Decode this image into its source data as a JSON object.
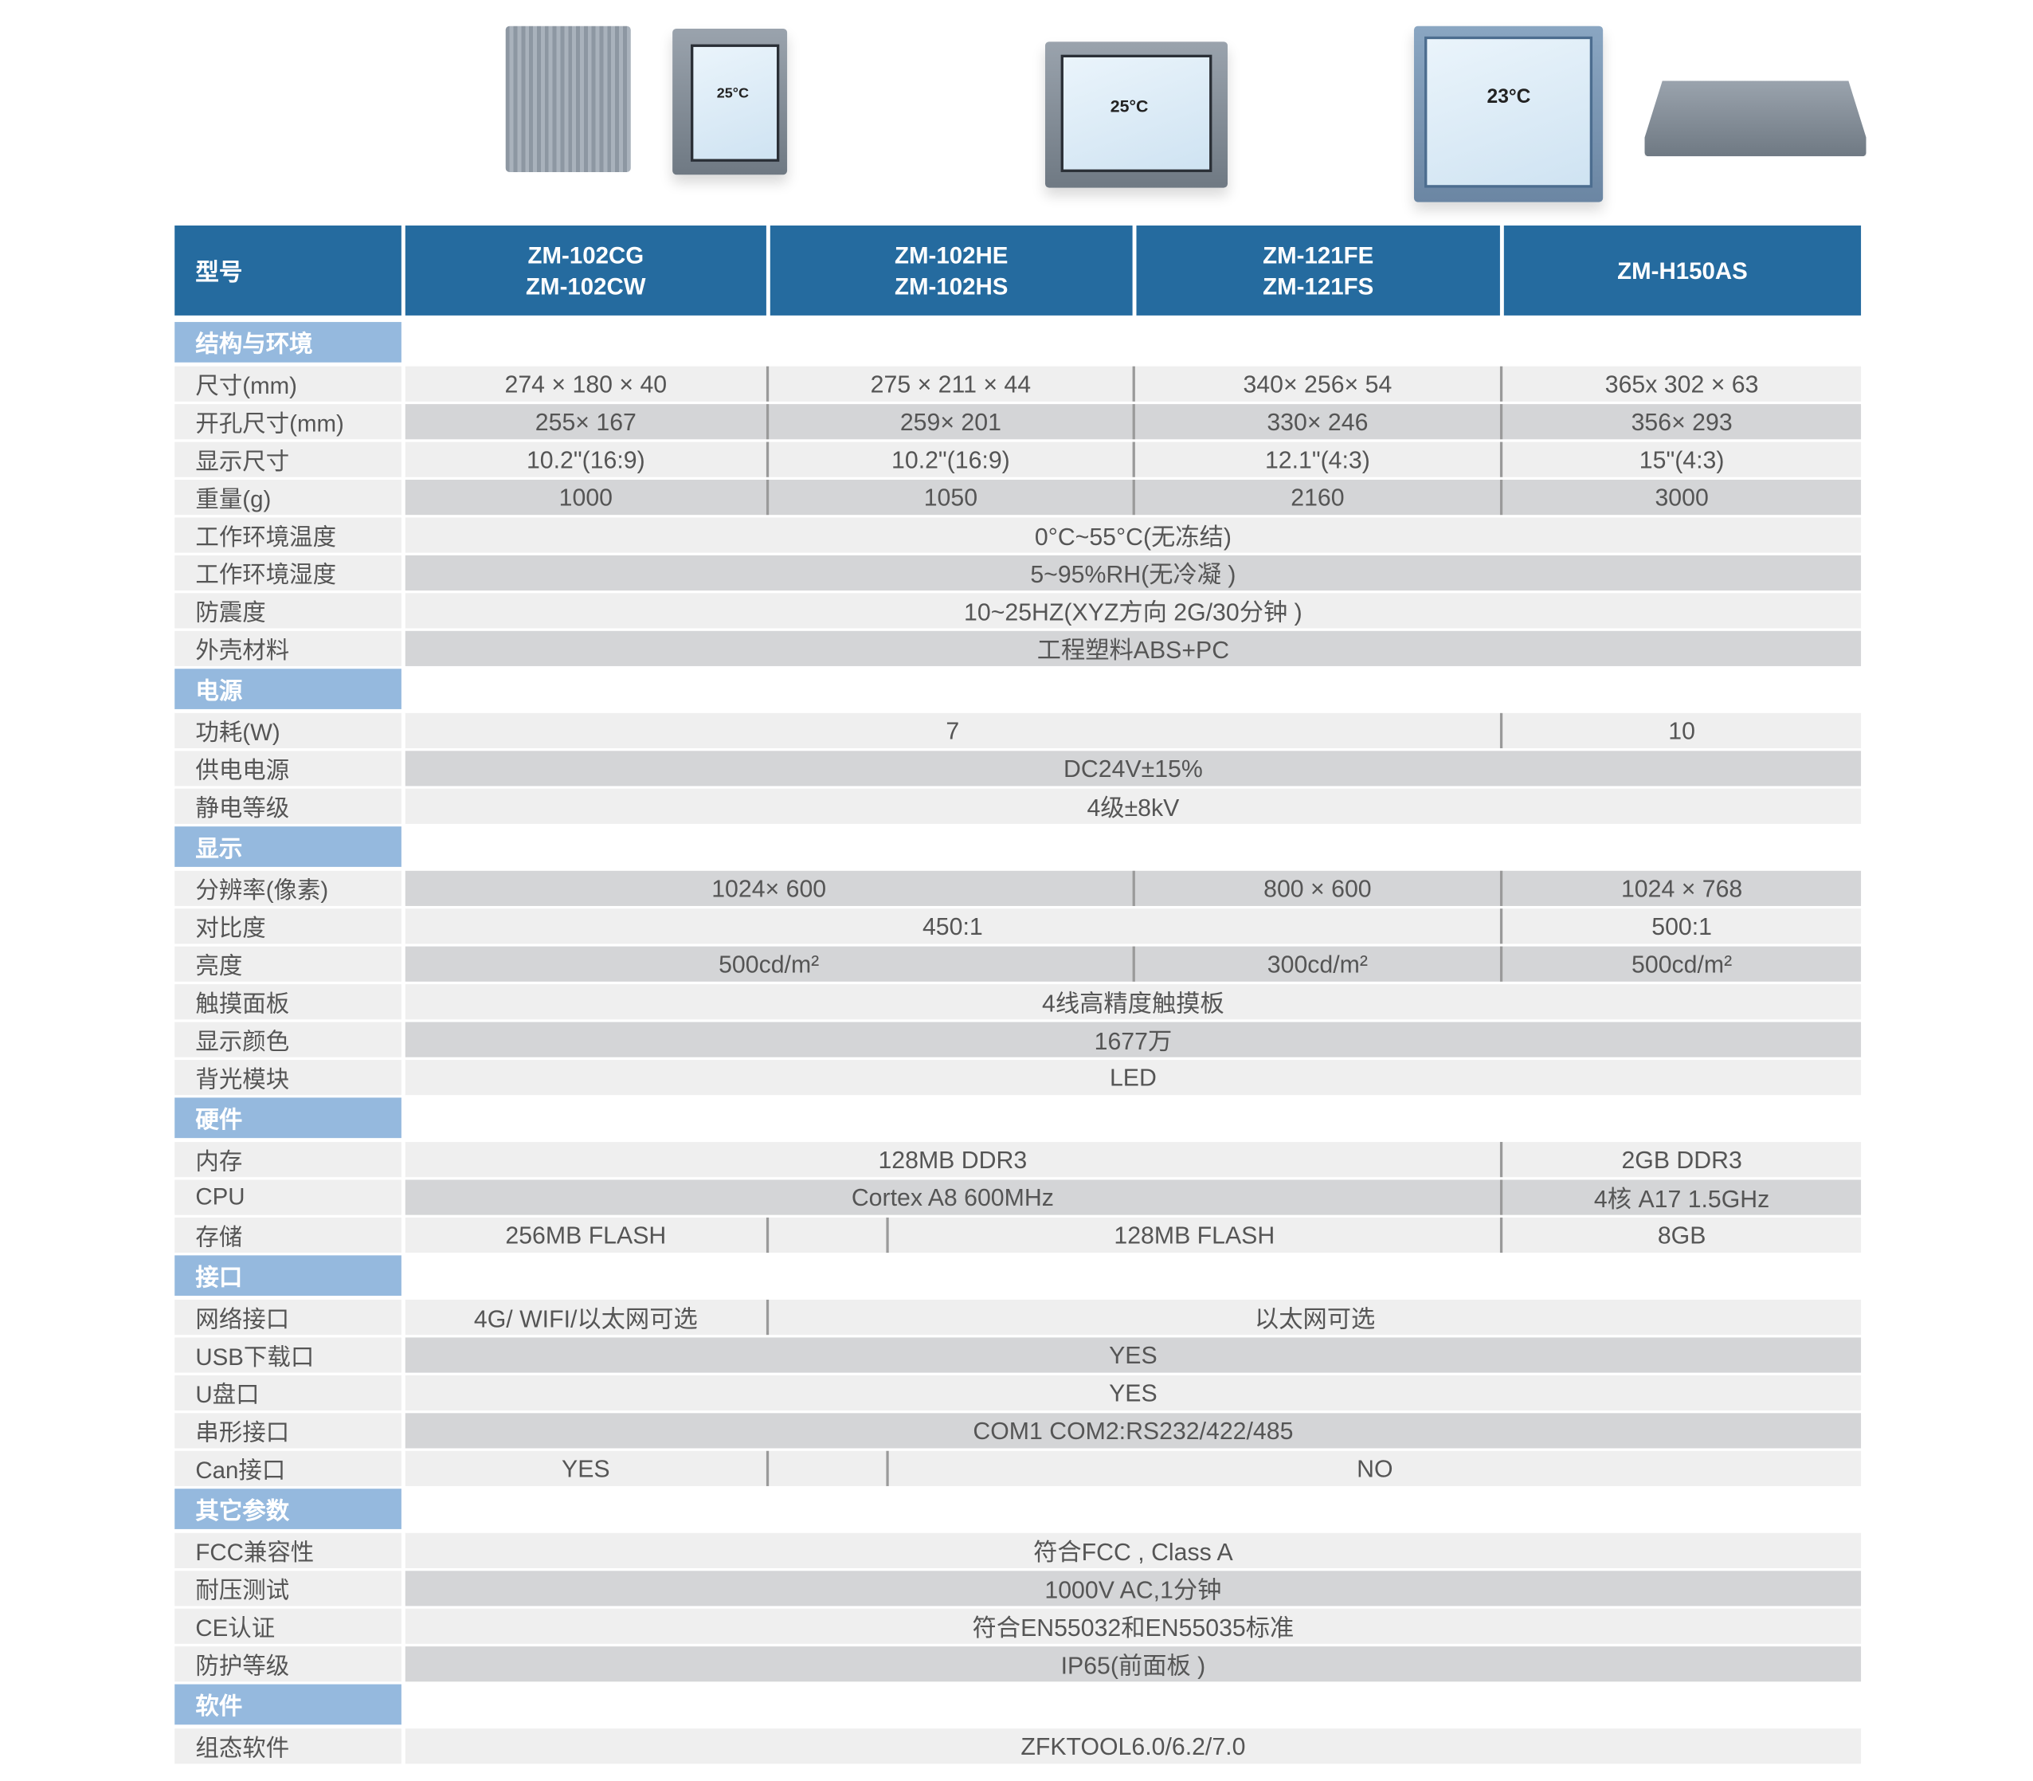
{
  "header": {
    "label": "型号",
    "models": [
      "ZM-102CG\nZM-102CW",
      "ZM-102HE\nZM-102HS",
      "ZM-121FE\nZM-121FS",
      "ZM-H150AS"
    ]
  },
  "colors": {
    "header": "#256b9f",
    "section": "#95b9de",
    "light": "#efefef",
    "dark": "#d4d5d7"
  },
  "products": [
    {
      "screen_text": "25°C"
    },
    {
      "screen_text": "25°C"
    },
    {
      "screen_text": "23°C"
    },
    {
      "screen_text": ""
    }
  ],
  "sections": [
    {
      "title": "结构与环境",
      "rows": [
        {
          "label": "尺寸(mm)",
          "band": "light",
          "cells": [
            {
              "text": "274 × 180 × 40",
              "span": 1
            },
            {
              "text": "275 × 211 × 44",
              "span": 2
            },
            {
              "text": "340× 256× 54",
              "span": 1
            },
            {
              "text": "365x 302 × 63",
              "span": 1
            }
          ]
        },
        {
          "label": "开孔尺寸(mm)",
          "band": "dark",
          "cells": [
            {
              "text": "255× 167",
              "span": 1
            },
            {
              "text": "259× 201",
              "span": 2
            },
            {
              "text": "330× 246",
              "span": 1
            },
            {
              "text": "356× 293",
              "span": 1
            }
          ]
        },
        {
          "label": "显示尺寸",
          "band": "light",
          "cells": [
            {
              "text": "10.2\"(16:9)",
              "span": 1
            },
            {
              "text": "10.2\"(16:9)",
              "span": 2
            },
            {
              "text": "12.1\"(4:3)",
              "span": 1
            },
            {
              "text": "15\"(4:3)",
              "span": 1
            }
          ]
        },
        {
          "label": "重量(g)",
          "band": "dark",
          "cells": [
            {
              "text": "1000",
              "span": 1
            },
            {
              "text": "1050",
              "span": 2
            },
            {
              "text": "2160",
              "span": 1
            },
            {
              "text": "3000",
              "span": 1
            }
          ]
        },
        {
          "label": "工作环境温度",
          "band": "light",
          "cells": [
            {
              "text": "0°C~55°C(无冻结)",
              "span": 5
            }
          ]
        },
        {
          "label": "工作环境湿度",
          "band": "dark",
          "cells": [
            {
              "text": "5~95%RH(无冷凝 )",
              "span": 5
            }
          ]
        },
        {
          "label": "防震度",
          "band": "light",
          "cells": [
            {
              "text": "10~25HZ(XYZ方向 2G/30分钟 )",
              "span": 5
            }
          ]
        },
        {
          "label": "外壳材料",
          "band": "dark",
          "cells": [
            {
              "text": "工程塑料ABS+PC",
              "span": 5
            }
          ]
        }
      ]
    },
    {
      "title": "电源",
      "rows": [
        {
          "label": "功耗(W)",
          "band": "light",
          "cells": [
            {
              "text": "7",
              "span": 4
            },
            {
              "text": "10",
              "span": 1
            }
          ]
        },
        {
          "label": "供电电源",
          "band": "dark",
          "cells": [
            {
              "text": "DC24V±15%",
              "span": 5
            }
          ]
        },
        {
          "label": "静电等级",
          "band": "light",
          "cells": [
            {
              "text": "4级±8kV",
              "span": 5
            }
          ]
        }
      ]
    },
    {
      "title": "显示",
      "rows": [
        {
          "label": "分辨率(像素)",
          "band": "dark",
          "cells": [
            {
              "text": "1024× 600",
              "span": 3
            },
            {
              "text": "800 × 600",
              "span": 1
            },
            {
              "text": "1024 × 768",
              "span": 1
            }
          ]
        },
        {
          "label": "对比度",
          "band": "light",
          "cells": [
            {
              "text": "450:1",
              "span": 4
            },
            {
              "text": "500:1",
              "span": 1
            }
          ]
        },
        {
          "label": "亮度",
          "band": "dark",
          "cells": [
            {
              "text": "500cd/m²",
              "span": 3
            },
            {
              "text": "300cd/m²",
              "span": 1
            },
            {
              "text": "500cd/m²",
              "span": 1
            }
          ]
        },
        {
          "label": "触摸面板",
          "band": "light",
          "cells": [
            {
              "text": "4线高精度触摸板",
              "span": 5
            }
          ]
        },
        {
          "label": "显示颜色",
          "band": "dark",
          "cells": [
            {
              "text": "1677万",
              "span": 5
            }
          ]
        },
        {
          "label": "背光模块",
          "band": "light",
          "cells": [
            {
              "text": "LED",
              "span": 5
            }
          ]
        }
      ]
    },
    {
      "title": "硬件",
      "rows": [
        {
          "label": "内存",
          "band": "light",
          "cells": [
            {
              "text": "128MB DDR3",
              "span": 4
            },
            {
              "text": "2GB DDR3",
              "span": 1
            }
          ]
        },
        {
          "label": "CPU",
          "band": "dark",
          "cells": [
            {
              "text": "Cortex A8 600MHz",
              "span": 4
            },
            {
              "text": "4核 A17 1.5GHz",
              "span": 1
            }
          ]
        },
        {
          "label": "存储",
          "band": "light",
          "cells": [
            {
              "text": "256MB FLASH",
              "span": 1
            },
            {
              "text": "",
              "span": 1
            },
            {
              "text": "128MB FLASH",
              "span": 2
            },
            {
              "text": "8GB",
              "span": 1
            }
          ]
        }
      ]
    },
    {
      "title": "接口",
      "rows": [
        {
          "label": "网络接口",
          "band": "light",
          "cells": [
            {
              "text": "4G/ WIFI/以太网可选",
              "span": 1
            },
            {
              "text": "以太网可选",
              "span": 4
            }
          ]
        },
        {
          "label": "USB下载口",
          "band": "dark",
          "cells": [
            {
              "text": "YES",
              "span": 5
            }
          ]
        },
        {
          "label": "U盘口",
          "band": "light",
          "cells": [
            {
              "text": "YES",
              "span": 5
            }
          ]
        },
        {
          "label": "串形接口",
          "band": "dark",
          "cells": [
            {
              "text": "COM1 COM2:RS232/422/485",
              "span": 5
            }
          ]
        },
        {
          "label": "Can接口",
          "band": "light",
          "cells": [
            {
              "text": "YES",
              "span": 1
            },
            {
              "text": "",
              "span": 1
            },
            {
              "text": "NO",
              "span": 3
            }
          ]
        }
      ]
    },
    {
      "title": "其它参数",
      "rows": [
        {
          "label": "FCC兼容性",
          "band": "light",
          "cells": [
            {
              "text": "符合FCC , Class A",
              "span": 5
            }
          ]
        },
        {
          "label": "耐压测试",
          "band": "dark",
          "cells": [
            {
              "text": "1000V AC,1分钟",
              "span": 5
            }
          ]
        },
        {
          "label": "CE认证",
          "band": "light",
          "cells": [
            {
              "text": "符合EN55032和EN55035标准",
              "span": 5
            }
          ]
        },
        {
          "label": "防护等级",
          "band": "dark",
          "cells": [
            {
              "text": "IP65(前面板 )",
              "span": 5
            }
          ]
        }
      ]
    },
    {
      "title": "软件",
      "rows": [
        {
          "label": "组态软件",
          "band": "light",
          "cells": [
            {
              "text": "ZFKTOOL6.0/6.2/7.0",
              "span": 5
            }
          ]
        }
      ]
    }
  ]
}
